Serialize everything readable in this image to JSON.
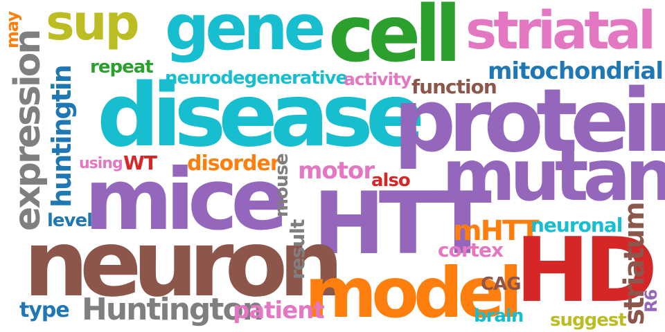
{
  "words": {
    "sup": {
      "text": "sup",
      "color": "#bcbd22"
    },
    "gene": {
      "text": "gene",
      "color": "#17becf"
    },
    "cell": {
      "text": "cell",
      "color": "#2ca02c"
    },
    "striatal": {
      "text": "striatal",
      "color": "#e377c2"
    },
    "may": {
      "text": "may",
      "color": "#ff7f0e"
    },
    "repeat": {
      "text": "repeat",
      "color": "#2ca02c"
    },
    "neurodegenerative": {
      "text": "neurodegenerative",
      "color": "#17becf"
    },
    "activity": {
      "text": "activity",
      "color": "#e377c2"
    },
    "mitochondrial": {
      "text": "mitochondrial",
      "color": "#1f77b4"
    },
    "function": {
      "text": "function",
      "color": "#8c564b"
    },
    "disease": {
      "text": "disease",
      "color": "#17becf"
    },
    "protein": {
      "text": "protein",
      "color": "#9467bd"
    },
    "expression": {
      "text": "expression",
      "color": "#7f7f7f"
    },
    "huntingtin": {
      "text": "huntingtin",
      "color": "#1f77b4"
    },
    "using": {
      "text": "using",
      "color": "#e377c2"
    },
    "WT": {
      "text": "WT",
      "color": "#d62728"
    },
    "disorder": {
      "text": "disorder",
      "color": "#ff7f0e"
    },
    "motor": {
      "text": "motor",
      "color": "#e377c2"
    },
    "also": {
      "text": "also",
      "color": "#d62728"
    },
    "mutant": {
      "text": "mutant",
      "color": "#9467bd"
    },
    "mice": {
      "text": "mice",
      "color": "#9467bd"
    },
    "mouse": {
      "text": "mouse",
      "color": "#7f7f7f"
    },
    "HTT": {
      "text": "HTT",
      "color": "#9467bd"
    },
    "level": {
      "text": "level",
      "color": "#1f77b4"
    },
    "mHTT": {
      "text": "mHTT",
      "color": "#ff7f0e"
    },
    "neuronal": {
      "text": "neuronal",
      "color": "#17becf"
    },
    "neuron": {
      "text": "neuron",
      "color": "#8c564b"
    },
    "result": {
      "text": "result",
      "color": "#7f7f7f"
    },
    "cortex": {
      "text": "cortex",
      "color": "#e377c2"
    },
    "HD": {
      "text": "HD",
      "color": "#d62728"
    },
    "striatum": {
      "text": "striatum",
      "color": "#8c564b"
    },
    "model": {
      "text": "model",
      "color": "#ff7f0e"
    },
    "CAG": {
      "text": "CAG",
      "color": "#8c564b"
    },
    "R6": {
      "text": "R6",
      "color": "#9467bd"
    },
    "type": {
      "text": "type",
      "color": "#1f77b4"
    },
    "Huntington": {
      "text": "Huntington",
      "color": "#7f7f7f"
    },
    "patient": {
      "text": "patient",
      "color": "#e377c2"
    },
    "brain": {
      "text": "brain",
      "color": "#17becf"
    },
    "suggest": {
      "text": "suggest",
      "color": "#bcbd22"
    }
  }
}
